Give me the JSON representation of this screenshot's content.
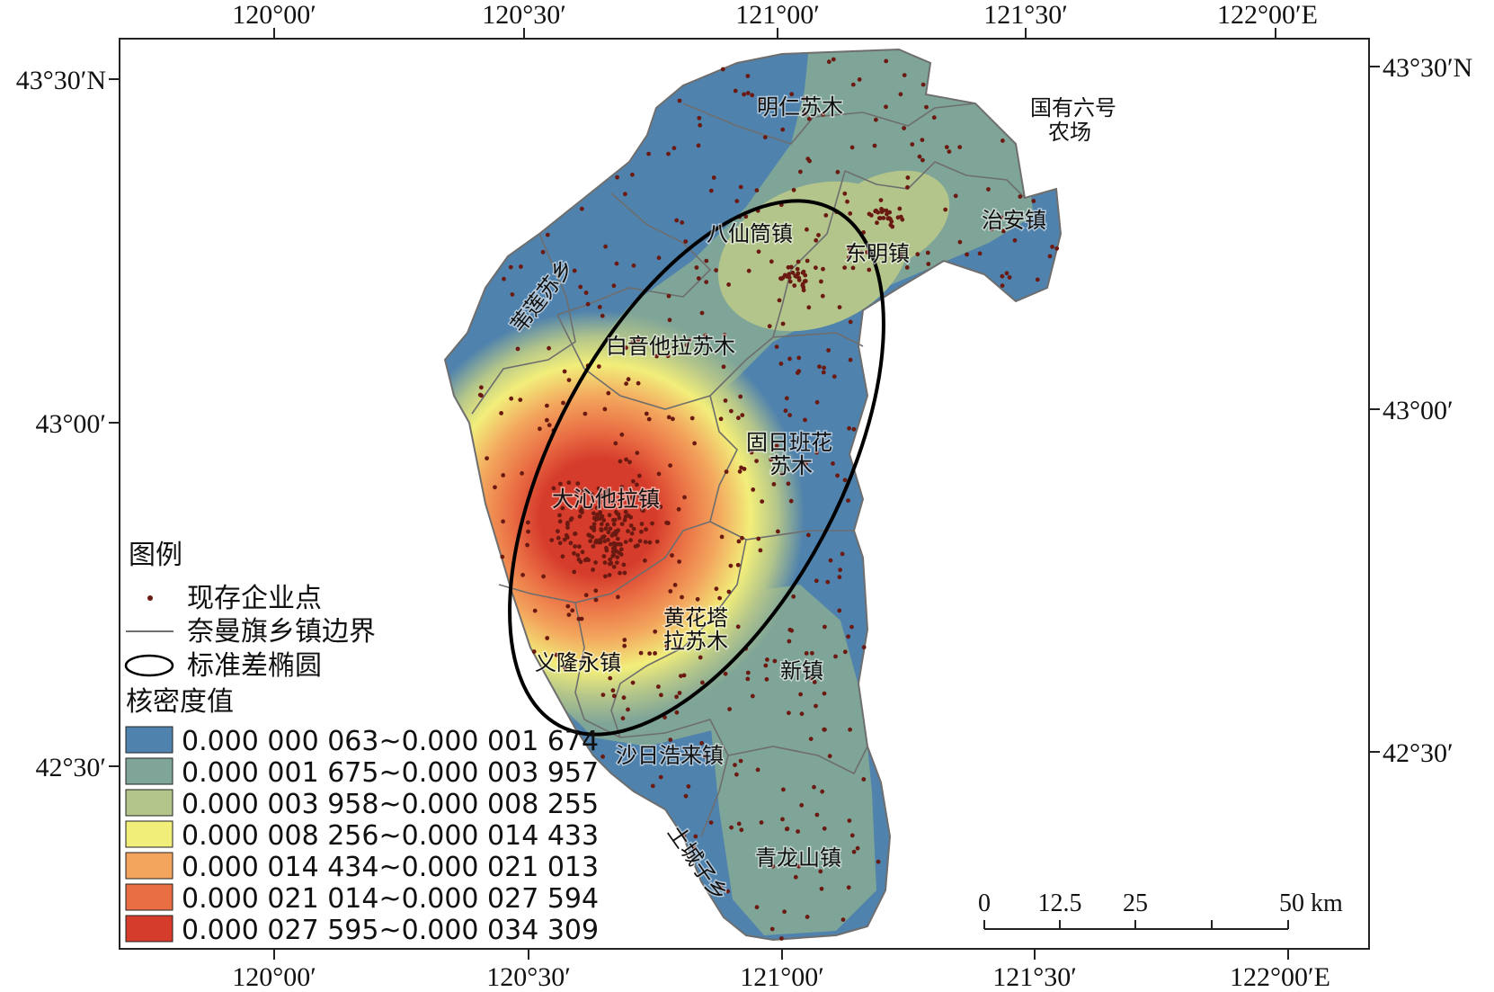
{
  "axes": {
    "top_labels": [
      "120°00′",
      "120°30′",
      "121°00′",
      "121°30′",
      "122°00′E"
    ],
    "bottom_labels": [
      "120°00′",
      "120°30′",
      "121°00′",
      "121°30′",
      "122°00′E"
    ],
    "left_labels": [
      "43°30′N",
      "43°00′",
      "42°30′"
    ],
    "right_labels": [
      "43°30′N",
      "43°00′",
      "42°30′"
    ]
  },
  "towns": [
    {
      "name": "明仁苏木"
    },
    {
      "name": "国有六号"
    },
    {
      "name": "农场"
    },
    {
      "name": "八仙筒镇"
    },
    {
      "name": "东明镇"
    },
    {
      "name": "治安镇"
    },
    {
      "name": "苇莲苏乡"
    },
    {
      "name": "白音他拉苏木"
    },
    {
      "name": "固日班花"
    },
    {
      "name": "苏木"
    },
    {
      "name": "大沁他拉镇"
    },
    {
      "name": "黄花塔"
    },
    {
      "name": "拉苏木"
    },
    {
      "name": "义隆永镇"
    },
    {
      "name": "新镇"
    },
    {
      "name": "沙日浩来镇"
    },
    {
      "name": "土城子乡"
    },
    {
      "name": "青龙山镇"
    }
  ],
  "legend": {
    "title": "图例",
    "point_label": "现存企业点",
    "boundary_label": "奈曼旗乡镇边界",
    "ellipse_label": "标准差椭圆",
    "density_title": "核密度值",
    "classes": [
      {
        "label": "0.000 000 063~0.000 001 674",
        "color": "#4f82ad"
      },
      {
        "label": "0.000 001 675~0.000 003 957",
        "color": "#7fa598"
      },
      {
        "label": "0.000 003 958~0.000 008 255",
        "color": "#b3c58a"
      },
      {
        "label": "0.000 008 256~0.000 014 433",
        "color": "#f2ee7a"
      },
      {
        "label": "0.000 014 434~0.000 021 013",
        "color": "#f3a55d"
      },
      {
        "label": "0.000 021 014~0.000 027 594",
        "color": "#ea6e44"
      },
      {
        "label": "0.000 027 595~0.000 034 309",
        "color": "#d63c2c"
      }
    ]
  },
  "scale_bar": {
    "labels": [
      "0",
      "12.5",
      "25",
      "50 km"
    ]
  },
  "colors": {
    "point": "#6b1a12",
    "boundary": "#6e6e6e",
    "ellipse": "#000000"
  }
}
